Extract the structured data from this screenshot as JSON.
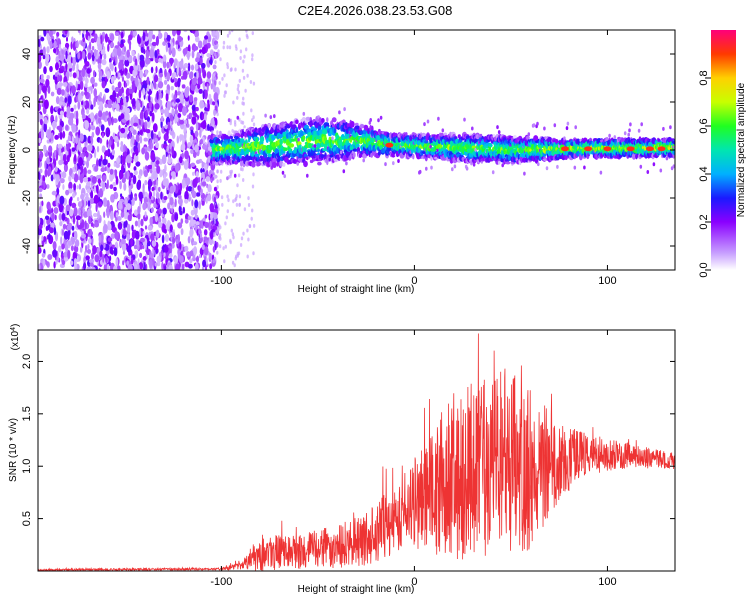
{
  "title": "C2E4.2026.038.23.53.G08",
  "chart_data": [
    {
      "type": "heatmap",
      "name": "spectrogram",
      "xlabel": "Height of straight line (km)",
      "ylabel": "Frequency (Hz)",
      "xlim": [
        -195,
        135
      ],
      "ylim": [
        -50,
        50
      ],
      "xticks": [
        -100,
        0,
        100
      ],
      "yticks": [
        -40,
        -20,
        0,
        20,
        40
      ],
      "noise_region_x": [
        -195,
        -105
      ],
      "signal_band": [
        {
          "x": -105,
          "center": 0,
          "halfwidth": 4
        },
        {
          "x": -75,
          "center": 2,
          "halfwidth": 6
        },
        {
          "x": -50,
          "center": 4,
          "halfwidth": 7
        },
        {
          "x": -30,
          "center": 4,
          "halfwidth": 5
        },
        {
          "x": -10,
          "center": 2,
          "halfwidth": 3
        },
        {
          "x": 20,
          "center": 1,
          "halfwidth": 4
        },
        {
          "x": 50,
          "center": 0,
          "halfwidth": 4
        },
        {
          "x": 80,
          "center": 0.5,
          "halfwidth": 2.5
        },
        {
          "x": 135,
          "center": 1,
          "halfwidth": 2.5
        }
      ],
      "colorbar": {
        "label": "Normalized spectral amplitude",
        "range": [
          0,
          1
        ],
        "ticks": [
          "0.0",
          "0.2",
          "0.4",
          "0.6",
          "0.8"
        ]
      }
    },
    {
      "type": "line",
      "name": "snr",
      "xlabel": "Height of straight line (km)",
      "ylabel": "SNR (10 * v/v)",
      "multiplier_label": "(x10",
      "multiplier_exp": "4",
      "xlim": [
        -195,
        135
      ],
      "ylim": [
        0,
        2.3
      ],
      "xticks": [
        -100,
        0,
        100
      ],
      "yticks": [
        "0.5",
        "1.0",
        "1.5",
        "2.0"
      ],
      "color": "#ee3333",
      "envelope": [
        {
          "x": -195,
          "mean": 0.01,
          "amp": 0.01
        },
        {
          "x": -100,
          "mean": 0.02,
          "amp": 0.01
        },
        {
          "x": -90,
          "mean": 0.05,
          "amp": 0.04
        },
        {
          "x": -80,
          "mean": 0.18,
          "amp": 0.18
        },
        {
          "x": -60,
          "mean": 0.18,
          "amp": 0.16
        },
        {
          "x": -45,
          "mean": 0.22,
          "amp": 0.2
        },
        {
          "x": -25,
          "mean": 0.3,
          "amp": 0.25
        },
        {
          "x": -10,
          "mean": 0.5,
          "amp": 0.35
        },
        {
          "x": 0,
          "mean": 0.65,
          "amp": 0.45
        },
        {
          "x": 20,
          "mean": 0.9,
          "amp": 0.8
        },
        {
          "x": 45,
          "mean": 1.05,
          "amp": 0.9
        },
        {
          "x": 60,
          "mean": 1.0,
          "amp": 0.8
        },
        {
          "x": 75,
          "mean": 1.05,
          "amp": 0.4
        },
        {
          "x": 90,
          "mean": 1.12,
          "amp": 0.2
        },
        {
          "x": 110,
          "mean": 1.1,
          "amp": 0.12
        },
        {
          "x": 135,
          "mean": 1.05,
          "amp": 0.08
        }
      ]
    }
  ]
}
